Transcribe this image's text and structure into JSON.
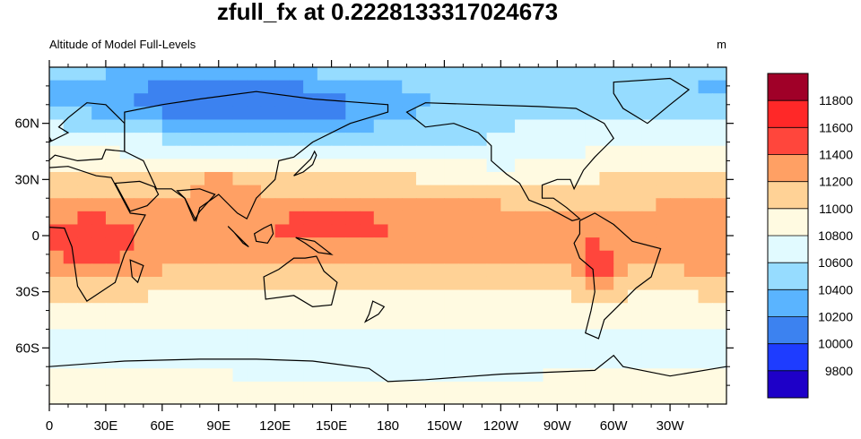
{
  "chart_data": {
    "type": "heatmap",
    "title": "zfull_fx at 0.2228133317024673",
    "subtitle_left": "Altitude of Model Full-Levels",
    "subtitle_right": "m",
    "x_ticks": [
      "0",
      "30E",
      "60E",
      "90E",
      "120E",
      "150E",
      "180",
      "150W",
      "120W",
      "90W",
      "60W",
      "30W"
    ],
    "x_tick_values": [
      0,
      30,
      60,
      90,
      120,
      150,
      180,
      210,
      240,
      270,
      300,
      330
    ],
    "y_ticks": [
      "60N",
      "30N",
      "0",
      "30S",
      "60S"
    ],
    "y_tick_values": [
      60,
      30,
      0,
      -30,
      -60
    ],
    "xlim": [
      0,
      360
    ],
    "ylim": [
      -90,
      90
    ],
    "colorbar_levels": [
      "9800",
      "10000",
      "10200",
      "10400",
      "10600",
      "10800",
      "11000",
      "11200",
      "11400",
      "11600",
      "11800"
    ],
    "colorbar_level_values": [
      9800,
      10000,
      10200,
      10400,
      10600,
      10800,
      11000,
      11200,
      11400,
      11600,
      11800
    ],
    "colorbar_colors": [
      "#1e00c8",
      "#1e3cff",
      "#3c82f0",
      "#5ab4ff",
      "#96dcff",
      "#e1faff",
      "#fffae1",
      "#ffd296",
      "#ffa064",
      "#ff463c",
      "#ff2828",
      "#a00028"
    ],
    "land_color": "#000000"
  }
}
